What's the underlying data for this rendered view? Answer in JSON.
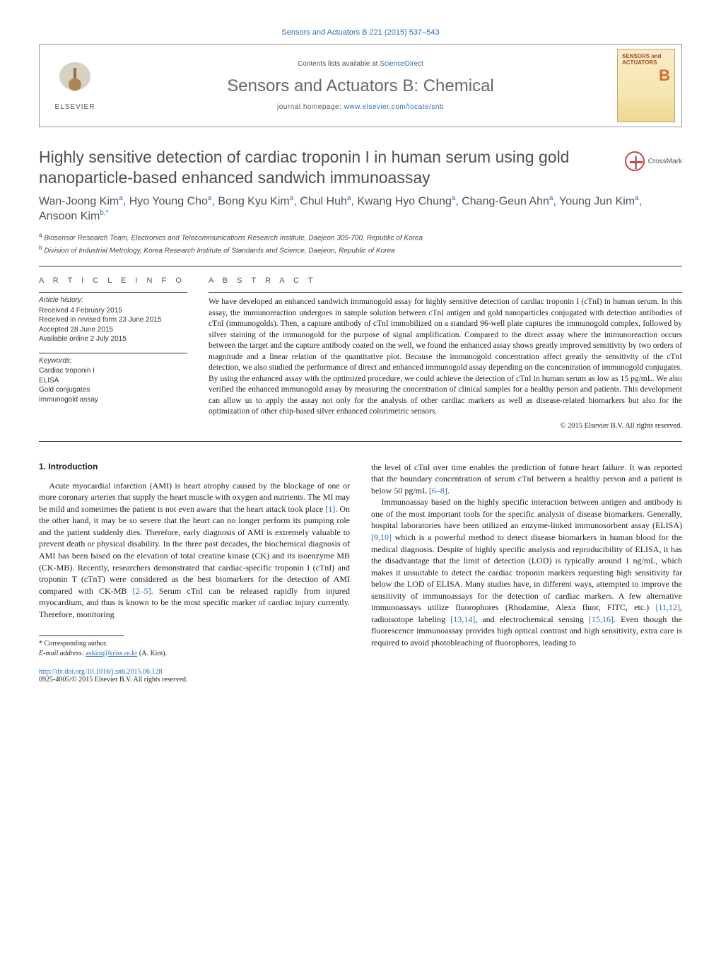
{
  "citation_header": "Sensors and Actuators B 221 (2015) 537–543",
  "contents_prefix": "Contents lists available at ",
  "contents_link": "ScienceDirect",
  "journal_name": "Sensors and Actuators B: Chemical",
  "homepage_prefix": "journal homepage: ",
  "homepage_link": "www.elsevier.com/locate/snb",
  "publisher": "ELSEVIER",
  "cover": {
    "title": "SENSORS and ACTUATORS",
    "letter": "B"
  },
  "crossmark_label": "CrossMark",
  "article": {
    "title": "Highly sensitive detection of cardiac troponin I in human serum using gold nanoparticle-based enhanced sandwich immunoassay",
    "authors_html": "Wan-Joong Kim<sup>a</sup>, Hyo Young Cho<sup>a</sup>, Bong Kyu Kim<sup>a</sup>, Chul Huh<sup>a</sup>, Kwang Hyo Chung<sup>a</sup>, Chang-Geun Ahn<sup>a</sup>, Young Jun Kim<sup>a</sup>, Ansoon Kim<sup>b,*</sup>",
    "affiliations": {
      "a": "Biosensor Research Team, Electronics and Telecommunications Research Institute, Daejeon 305-700, Republic of Korea",
      "b": "Division of Industrial Metrology, Korea Research Institute of Standards and Science, Daejeon, Republic of Korea"
    }
  },
  "info": {
    "heading": "a r t i c l e   i n f o",
    "history_head": "Article history:",
    "history": [
      "Received 4 February 2015",
      "Received in revised form 23 June 2015",
      "Accepted 28 June 2015",
      "Available online 2 July 2015"
    ],
    "keywords_head": "Keywords:",
    "keywords": [
      "Cardiac troponin I",
      "ELISA",
      "Gold conjugates",
      "Immunogold assay"
    ]
  },
  "abstract": {
    "heading": "a b s t r a c t",
    "text": "We have developed an enhanced sandwich immunogold assay for highly sensitive detection of cardiac troponin I (cTnI) in human serum. In this assay, the immunoreaction undergoes in sample solution between cTnI antigen and gold nanoparticles conjugated with detection antibodies of cTnI (immunogolds). Then, a capture antibody of cTnI immobilized on a standard 96-well plate captures the immunogold complex, followed by silver staining of the immunogold for the purpose of signal amplification. Compared to the direct assay where the immunoreaction occurs between the target and the capture antibody coated on the well, we found the enhanced assay shows greatly improved sensitivity by two orders of magnitude and a linear relation of the quantitative plot. Because the immunogold concentration affect greatly the sensitivity of the cTnI detection, we also studied the performance of direct and enhanced immunogold assay depending on the concentration of immunogold conjugates. By using the enhanced assay with the optimized procedure, we could achieve the detection of cTnI in human serum as low as 15 pg/mL. We also verified the enhanced immunogold assay by measuring the concentration of clinical samples for a healthy person and patients. This development can allow us to apply the assay not only for the analysis of other cardiac markers as well as disease-related biomarkers but also for the optimization of other chip-based silver enhanced colorimetric sensors.",
    "copyright": "© 2015 Elsevier B.V. All rights reserved."
  },
  "section1": {
    "heading": "1. Introduction",
    "col1_html": "Acute myocardial infarction (AMI) is heart atrophy caused by the blockage of one or more coronary arteries that supply the heart muscle with oxygen and nutrients. The MI may be mild and sometimes the patient is not even aware that the heart attack took place <span class=\"cite\">[1]</span>. On the other hand, it may be so severe that the heart can no longer perform its pumping role and the patient suddenly dies. Therefore, early diagnosis of AMI is extremely valuable to prevent death or physical disability. In the three past decades, the biochemical diagnosis of AMI has been based on the elevation of total creatine kinase (CK) and its isoenzyme MB (CK-MB). Recently, researchers demonstrated that cardiac-specific troponin I (cTnI) and troponin T (cTnT) were considered as the best biomarkers for the detection of AMI compared with CK-MB <span class=\"cite\">[2–5]</span>. Serum cTnI can be released rapidly from injured myocardium, and thus is known to be the most specific marker of cardiac injury currently. Therefore, monitoring",
    "col2_p1_html": "the level of cTnI over time enables the prediction of future heart failure. It was reported that the boundary concentration of serum cTnI between a healthy person and a patient is below 50 pg/mL <span class=\"cite\">[6–8]</span>.",
    "col2_p2_html": "Immunoassay based on the highly specific interaction between antigen and antibody is one of the most important tools for the specific analysis of disease biomarkers. Generally, hospital laboratories have been utilized an enzyme-linked immunosorbent assay (ELISA) <span class=\"cite\">[9,10]</span> which is a powerful method to detect disease biomarkers in human blood for the medical diagnosis. Despite of highly specific analysis and reproducibility of ELISA, it has the disadvantage that the limit of detection (LOD) is typically around 1 ng/mL, which makes it unsuitable to detect the cardiac troponin markers requesting high sensitivity far below the LOD of ELISA. Many studies have, in different ways, attempted to improve the sensitivity of immunoassays for the detection of cardiac markers. A few alternative immunoassays utilize fluorophores (Rhodamine, Alexa fluor, FITC, etc.) <span class=\"cite\">[11,12]</span>, radioisotope labeling <span class=\"cite\">[13,14]</span>, and electrochemical sensing <span class=\"cite\">[15,16]</span>. Even though the fluorescence immunoassay provides high optical contrast and high sensitivity, extra care is required to avoid photobleaching of fluorophores, leading to"
  },
  "footnotes": {
    "corresponding": "* Corresponding author.",
    "email_label": "E-mail address: ",
    "email": "askim@kriss.re.kr",
    "email_tail": " (A. Kim)."
  },
  "doi": {
    "url": "http://dx.doi.org/10.1016/j.snb.2015.06.128",
    "issn_line": "0925-4005/© 2015 Elsevier B.V. All rights reserved."
  },
  "colors": {
    "link": "#2a6fb5",
    "heading_gray": "#4b5056",
    "rule": "#333333"
  }
}
